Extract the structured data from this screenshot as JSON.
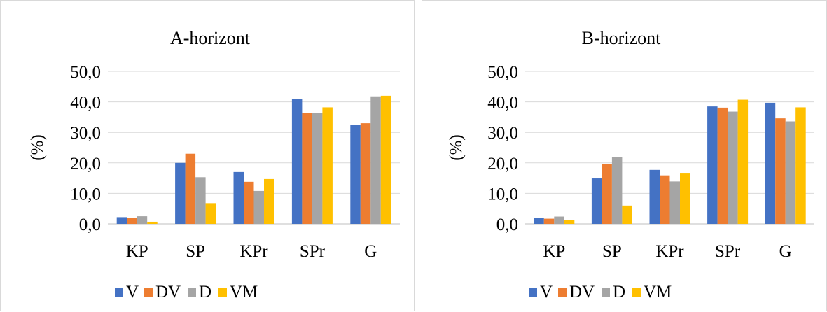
{
  "chart_data": [
    {
      "type": "bar",
      "title": "A-horizont",
      "ylabel": "(%)",
      "xlabel": "",
      "categories": [
        "KP",
        "SP",
        "KPr",
        "SPr",
        "G"
      ],
      "ylim": [
        0,
        50
      ],
      "yticks": [
        "0,0",
        "10,0",
        "20,0",
        "30,0",
        "40,0",
        "50,0"
      ],
      "grid": true,
      "legend": "bottom",
      "series": [
        {
          "name": "V",
          "color": "#4472C4",
          "values": [
            2.2,
            20.0,
            17.0,
            40.9,
            32.5
          ]
        },
        {
          "name": "DV",
          "color": "#ED7D31",
          "values": [
            2.0,
            23.0,
            13.8,
            36.4,
            33.0
          ]
        },
        {
          "name": "D",
          "color": "#A5A5A5",
          "values": [
            2.5,
            15.3,
            10.8,
            36.4,
            41.8
          ]
        },
        {
          "name": "VM",
          "color": "#FFC000",
          "values": [
            0.7,
            6.8,
            14.7,
            38.2,
            42.0
          ]
        }
      ]
    },
    {
      "type": "bar",
      "title": "B-horizont",
      "ylabel": "(%)",
      "xlabel": "",
      "categories": [
        "KP",
        "SP",
        "KPr",
        "SPr",
        "G"
      ],
      "ylim": [
        0,
        50
      ],
      "yticks": [
        "0,0",
        "10,0",
        "20,0",
        "30,0",
        "40,0",
        "50,0"
      ],
      "grid": true,
      "legend": "bottom",
      "series": [
        {
          "name": "V",
          "color": "#4472C4",
          "values": [
            1.9,
            14.9,
            17.7,
            38.5,
            39.7
          ]
        },
        {
          "name": "DV",
          "color": "#ED7D31",
          "values": [
            1.7,
            19.5,
            15.9,
            38.1,
            34.6
          ]
        },
        {
          "name": "D",
          "color": "#A5A5A5",
          "values": [
            2.4,
            22.0,
            13.9,
            36.8,
            33.6
          ]
        },
        {
          "name": "VM",
          "color": "#FFC000",
          "values": [
            1.2,
            6.0,
            16.5,
            40.7,
            38.2
          ]
        }
      ]
    }
  ]
}
